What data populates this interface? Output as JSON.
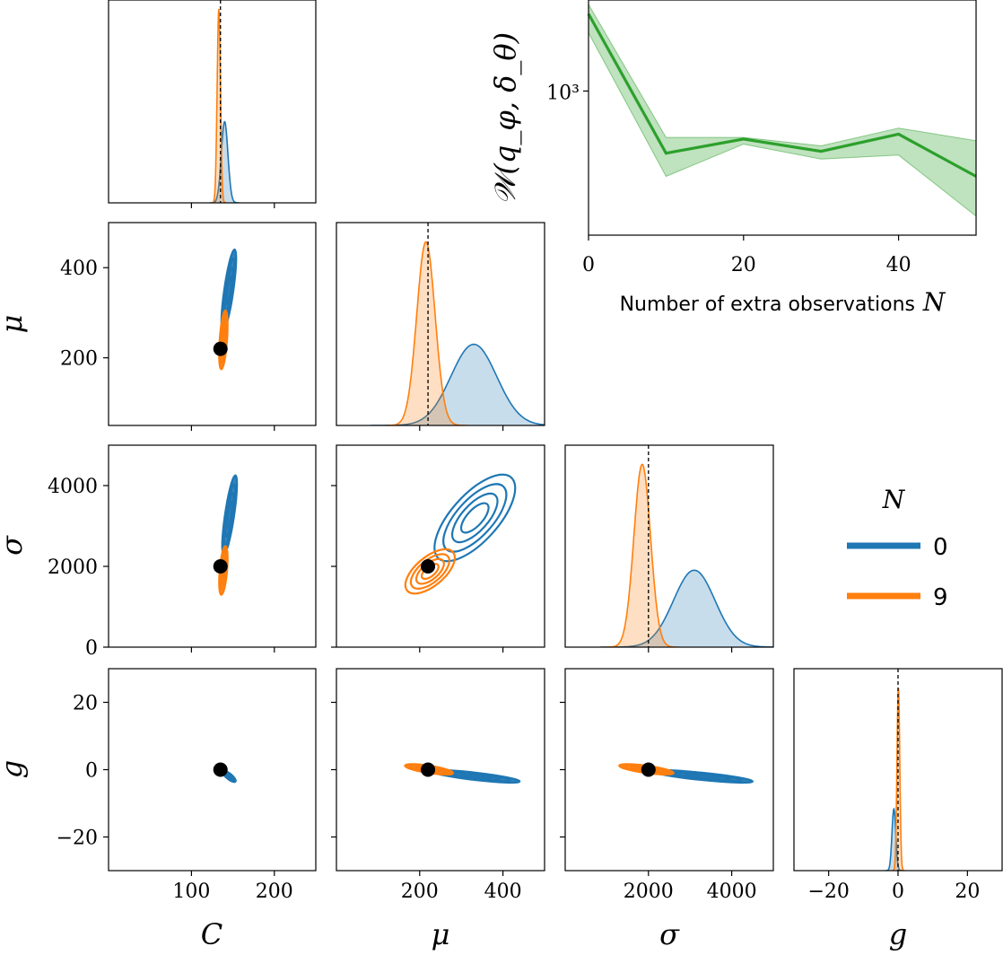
{
  "colors": {
    "n0": "#1f77b4",
    "n9": "#ff7f0e",
    "loss": "#2ca02c",
    "truth": "#000000"
  },
  "variables": [
    "C",
    "μ",
    "σ",
    "g"
  ],
  "true_values": {
    "C": 135,
    "mu": 220,
    "sigma": 2000,
    "g": 0
  },
  "legend": {
    "title": "N",
    "entries": [
      {
        "label": "0",
        "color": "#1f77b4"
      },
      {
        "label": "9",
        "color": "#ff7f0e"
      }
    ]
  },
  "chart_data": [
    {
      "type": "line",
      "id": "wasserstein-vs-N",
      "xlabel_text": "Number of extra observations",
      "xlabel_var": "N",
      "ylabel": "𝒲(q_φ, δ_θ)",
      "y_scale": "log",
      "xlim": [
        0,
        50
      ],
      "ylim": [
        250,
        2400
      ],
      "x_ticks": [
        0,
        20,
        40
      ],
      "x_tick_labels": [
        "0",
        "20",
        "40"
      ],
      "y_ticks": [
        1000
      ],
      "y_tick_labels": [
        "10³"
      ],
      "x": [
        0,
        10,
        20,
        30,
        40,
        50
      ],
      "y": [
        2100,
        550,
        630,
        560,
        660,
        440
      ],
      "band_lower": [
        1750,
        440,
        600,
        520,
        540,
        300
      ],
      "band_upper": [
        2300,
        640,
        640,
        590,
        700,
        620
      ]
    },
    {
      "type": "area",
      "id": "marginal-C",
      "xlim": [
        0,
        250
      ],
      "series": [
        {
          "name": "0",
          "peak": 140,
          "width": 4,
          "height": 0.42
        },
        {
          "name": "9",
          "peak": 133,
          "width": 2,
          "height": 1.0
        }
      ],
      "truth": 135
    },
    {
      "type": "area",
      "id": "marginal-mu",
      "xlim": [
        0,
        500
      ],
      "x_ticks": [
        200,
        400
      ],
      "series": [
        {
          "name": "0",
          "peak": 330,
          "width": 55,
          "height": 0.42
        },
        {
          "name": "9",
          "peak": 215,
          "width": 22,
          "height": 0.95
        }
      ],
      "truth": 220
    },
    {
      "type": "area",
      "id": "marginal-sigma",
      "xlim": [
        0,
        5000
      ],
      "x_ticks": [
        2000,
        4000
      ],
      "x_tick_labels": [
        "2000",
        "4000"
      ],
      "series": [
        {
          "name": "0",
          "peak": 3100,
          "width": 500,
          "height": 0.4
        },
        {
          "name": "9",
          "peak": 1850,
          "width": 200,
          "height": 0.95
        }
      ],
      "truth": 2000
    },
    {
      "type": "area",
      "id": "marginal-g",
      "xlim": [
        -30,
        30
      ],
      "x_ticks": [
        -20,
        0,
        20
      ],
      "x_tick_labels": [
        "−20",
        "0",
        "20"
      ],
      "series": [
        {
          "name": "0",
          "peak": -1.2,
          "width": 0.55,
          "height": 0.32
        },
        {
          "name": "9",
          "peak": 0.1,
          "width": 0.4,
          "height": 0.95
        }
      ],
      "truth": 0
    },
    {
      "type": "scatter",
      "id": "pair-C-mu",
      "xlim": [
        0,
        250
      ],
      "ylim": [
        50,
        500
      ],
      "y_ticks": [
        200,
        400
      ],
      "y_tick_labels": [
        "200",
        "400"
      ],
      "blobs": [
        {
          "name": "0",
          "x1": 138,
          "y1": 260,
          "x2": 152,
          "y2": 440,
          "w": 5
        },
        {
          "name": "9",
          "x1": 136,
          "y1": 175,
          "x2": 141,
          "y2": 305,
          "w": 4
        }
      ],
      "truth": [
        135,
        220
      ]
    },
    {
      "type": "scatter",
      "id": "pair-C-sigma",
      "xlim": [
        0,
        250
      ],
      "ylim": [
        0,
        5000
      ],
      "y_ticks": [
        0,
        2000,
        4000
      ],
      "y_tick_labels": [
        "0",
        "2000",
        "4000"
      ],
      "blobs": [
        {
          "name": "0",
          "x1": 139,
          "y1": 2300,
          "x2": 153,
          "y2": 4250,
          "w": 5
        },
        {
          "name": "9",
          "x1": 136,
          "y1": 1300,
          "x2": 141,
          "y2": 2500,
          "w": 4
        }
      ],
      "truth": [
        135,
        2000
      ]
    },
    {
      "type": "scatter",
      "id": "pair-mu-sigma",
      "xlim": [
        0,
        500
      ],
      "ylim": [
        0,
        5000
      ],
      "blobs": [
        {
          "name": "0",
          "x1": 245,
          "y1": 2200,
          "x2": 420,
          "y2": 4200,
          "w": 26
        },
        {
          "name": "9",
          "x1": 170,
          "y1": 1400,
          "x2": 280,
          "y2": 2350,
          "w": 16
        }
      ],
      "truth": [
        220,
        2000
      ]
    },
    {
      "type": "scatter",
      "id": "pair-C-g",
      "xlim": [
        0,
        250
      ],
      "ylim": [
        -30,
        30
      ],
      "x_ticks": [
        100,
        200
      ],
      "x_tick_labels": [
        "100",
        "200"
      ],
      "y_ticks": [
        -20,
        0,
        20
      ],
      "y_tick_labels": [
        "−20",
        "0",
        "20"
      ],
      "blobs": [
        {
          "name": "0",
          "x1": 138,
          "y1": -0.5,
          "x2": 153,
          "y2": -3.5,
          "w": 3
        },
        {
          "name": "9",
          "x1": 133,
          "y1": 0.6,
          "x2": 140,
          "y2": -0.6,
          "w": 3
        }
      ],
      "truth": [
        135,
        0
      ]
    },
    {
      "type": "scatter",
      "id": "pair-mu-g",
      "xlim": [
        0,
        500
      ],
      "ylim": [
        -30,
        30
      ],
      "x_ticks": [
        200,
        400
      ],
      "x_tick_labels": [
        "200",
        "400"
      ],
      "blobs": [
        {
          "name": "0",
          "x1": 230,
          "y1": -0.5,
          "x2": 440,
          "y2": -3.5,
          "w": 4
        },
        {
          "name": "9",
          "x1": 165,
          "y1": 1.2,
          "x2": 280,
          "y2": -1.0,
          "w": 4
        }
      ],
      "truth": [
        220,
        0
      ]
    },
    {
      "type": "scatter",
      "id": "pair-sigma-g",
      "xlim": [
        0,
        5000
      ],
      "ylim": [
        -30,
        30
      ],
      "x_ticks": [
        2000,
        4000
      ],
      "x_tick_labels": [
        "2000",
        "4000"
      ],
      "blobs": [
        {
          "name": "0",
          "x1": 2100,
          "y1": -0.5,
          "x2": 4500,
          "y2": -3.5,
          "w": 4
        },
        {
          "name": "9",
          "x1": 1300,
          "y1": 1.2,
          "x2": 2600,
          "y2": -1.0,
          "w": 4
        }
      ],
      "truth": [
        2000,
        0
      ]
    }
  ]
}
